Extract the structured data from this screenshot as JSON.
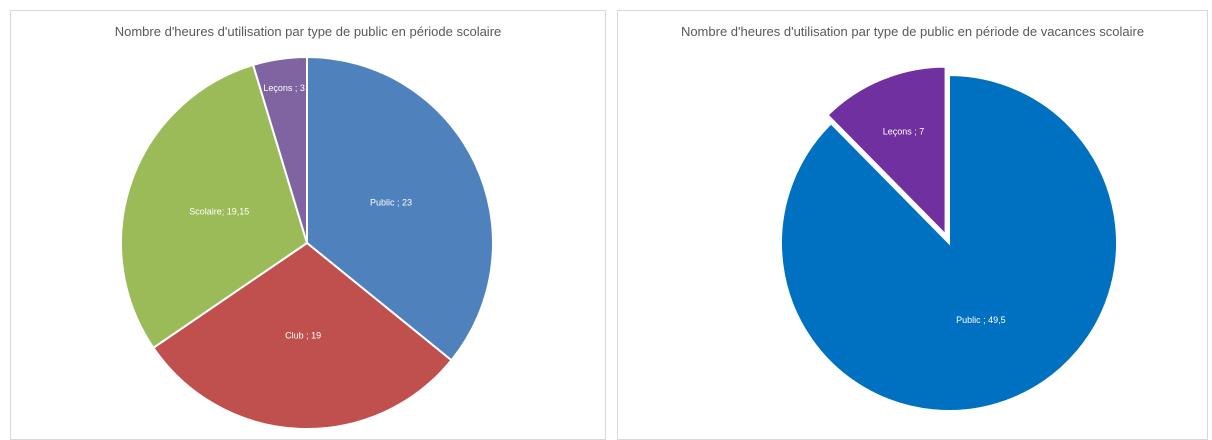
{
  "chart_data": [
    {
      "type": "pie",
      "title": "Nombre d'heures d'utilisation par type de public en période scolaire",
      "values": [
        23,
        19,
        19.15,
        3
      ],
      "value_labels": [
        "Public ; 23",
        "Club ; 19",
        "Scolaire; 19,15",
        "Leçons ; 3"
      ],
      "colors": [
        "#4f81bd",
        "#c0504d",
        "#9bbb59",
        "#8064a2"
      ],
      "explode": [
        false,
        false,
        false,
        false
      ]
    },
    {
      "type": "pie",
      "title": "Nombre d'heures d'utilisation par type de public en période de vacances scolaire",
      "values": [
        49.5,
        7
      ],
      "value_labels": [
        "Public ; 49,5",
        "Leçons ; 7"
      ],
      "colors": [
        "#0070c0",
        "#7030a0"
      ],
      "explode": [
        false,
        true
      ]
    }
  ]
}
